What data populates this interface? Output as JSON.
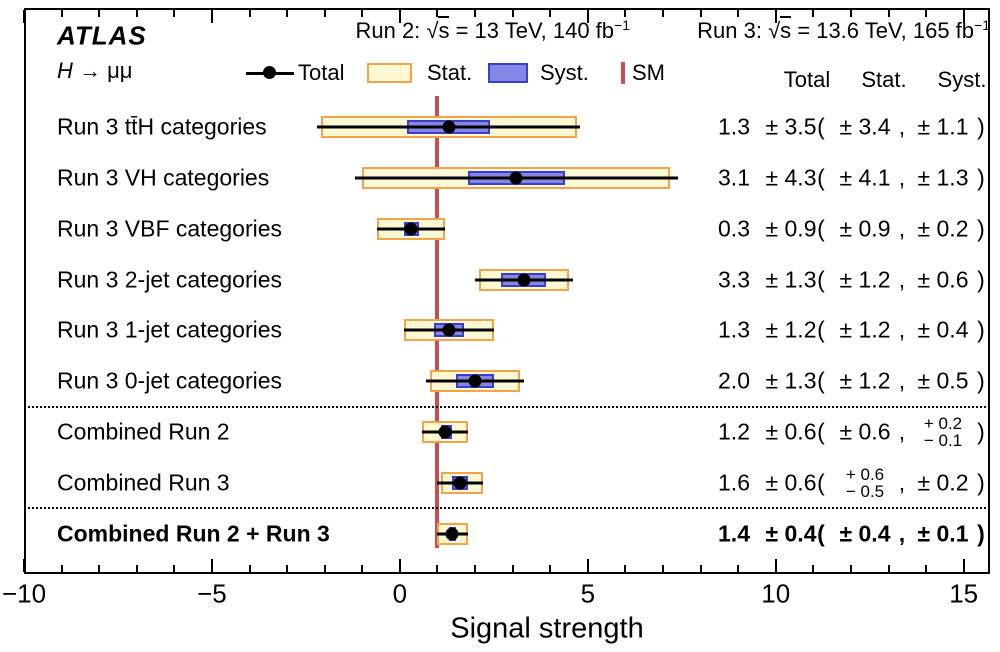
{
  "chart_data": {
    "type": "scatter",
    "variant": "horizontal-errorbar-summary",
    "title": "ATLAS",
    "subtitle_h": "H",
    "subtitle_rest": " → μμ",
    "conditions": {
      "run2": {
        "pre": "Run 2: ",
        "sqrt": "√",
        "arg": "s",
        "post": " = 13 TeV, 140 fb",
        "sup": "−1"
      },
      "run3": {
        "pre": "Run 3: ",
        "sqrt": "√",
        "arg": "s",
        "post": " = 13.6 TeV, 165 fb",
        "sup": "−1"
      }
    },
    "legend": {
      "total": "Total",
      "stat": "Stat.",
      "syst": "Syst.",
      "sm": "SM"
    },
    "columns": {
      "total": "Total",
      "stat": "Stat.",
      "syst": "Syst."
    },
    "xlabel": "Signal strength",
    "xlim": [
      -10,
      15.7
    ],
    "x_major_ticks": [
      -10,
      -5,
      0,
      5,
      10,
      15
    ],
    "x_tick_labels": [
      "−10",
      "−5",
      "0",
      "5",
      "10",
      "15"
    ],
    "x_minor_step": 1,
    "sm_value": 1,
    "punct": {
      "open": "(",
      "comma": ",",
      "close": ")"
    },
    "colors": {
      "stat_fill": "#fcf8d3",
      "stat_border": "#f2a44a",
      "syst_fill": "#8487e6",
      "syst_border": "#3a3ec8",
      "sm": "#c74e52",
      "total": "#000000"
    },
    "separators_after": [
      5,
      7
    ],
    "rows": [
      {
        "label": "Run 3 tt̄H categories",
        "bold": false,
        "value": 1.3,
        "total": {
          "up": 3.5,
          "down": 3.5
        },
        "stat": {
          "up": 3.4,
          "down": 3.4
        },
        "syst": {
          "up": 1.1,
          "down": 1.1
        },
        "display": {
          "value": "1.3",
          "total": {
            "pm": "± 3.5"
          },
          "stat": {
            "pm": "± 3.4"
          },
          "syst": {
            "pm": "± 1.1"
          }
        }
      },
      {
        "label": "Run 3 VH categories",
        "bold": false,
        "value": 3.1,
        "total": {
          "up": 4.3,
          "down": 4.3
        },
        "stat": {
          "up": 4.1,
          "down": 4.1
        },
        "syst": {
          "up": 1.3,
          "down": 1.3
        },
        "display": {
          "value": "3.1",
          "total": {
            "pm": "± 4.3"
          },
          "stat": {
            "pm": "± 4.1"
          },
          "syst": {
            "pm": "± 1.3"
          }
        }
      },
      {
        "label": "Run 3 VBF categories",
        "bold": false,
        "value": 0.3,
        "total": {
          "up": 0.9,
          "down": 0.9
        },
        "stat": {
          "up": 0.9,
          "down": 0.9
        },
        "syst": {
          "up": 0.2,
          "down": 0.2
        },
        "display": {
          "value": "0.3",
          "total": {
            "pm": "± 0.9"
          },
          "stat": {
            "pm": "± 0.9"
          },
          "syst": {
            "pm": "± 0.2"
          }
        }
      },
      {
        "label": "Run 3 2-jet categories",
        "bold": false,
        "value": 3.3,
        "total": {
          "up": 1.3,
          "down": 1.3
        },
        "stat": {
          "up": 1.2,
          "down": 1.2
        },
        "syst": {
          "up": 0.6,
          "down": 0.6
        },
        "display": {
          "value": "3.3",
          "total": {
            "pm": "± 1.3"
          },
          "stat": {
            "pm": "± 1.2"
          },
          "syst": {
            "pm": "± 0.6"
          }
        }
      },
      {
        "label": "Run 3 1-jet categories",
        "bold": false,
        "value": 1.3,
        "total": {
          "up": 1.2,
          "down": 1.2
        },
        "stat": {
          "up": 1.2,
          "down": 1.2
        },
        "syst": {
          "up": 0.4,
          "down": 0.4
        },
        "display": {
          "value": "1.3",
          "total": {
            "pm": "± 1.2"
          },
          "stat": {
            "pm": "± 1.2"
          },
          "syst": {
            "pm": "± 0.4"
          }
        }
      },
      {
        "label": "Run 3 0-jet categories",
        "bold": false,
        "value": 2.0,
        "total": {
          "up": 1.3,
          "down": 1.3
        },
        "stat": {
          "up": 1.2,
          "down": 1.2
        },
        "syst": {
          "up": 0.5,
          "down": 0.5
        },
        "display": {
          "value": "2.0",
          "total": {
            "pm": "± 1.3"
          },
          "stat": {
            "pm": "± 1.2"
          },
          "syst": {
            "pm": "± 0.5"
          }
        }
      },
      {
        "label": "Combined Run 2",
        "bold": false,
        "value": 1.2,
        "total": {
          "up": 0.6,
          "down": 0.6
        },
        "stat": {
          "up": 0.6,
          "down": 0.6
        },
        "syst": {
          "up": 0.2,
          "down": 0.1
        },
        "display": {
          "value": "1.2",
          "total": {
            "pm": "± 0.6"
          },
          "stat": {
            "pm": "± 0.6"
          },
          "syst": {
            "stack": true,
            "plus": "+ 0.2",
            "minus": "− 0.1"
          }
        }
      },
      {
        "label": "Combined Run 3",
        "bold": false,
        "value": 1.6,
        "total": {
          "up": 0.6,
          "down": 0.6
        },
        "stat": {
          "up": 0.6,
          "down": 0.5
        },
        "syst": {
          "up": 0.2,
          "down": 0.2
        },
        "display": {
          "value": "1.6",
          "total": {
            "pm": "± 0.6"
          },
          "stat": {
            "stack": true,
            "plus": "+ 0.6",
            "minus": "− 0.5"
          },
          "syst": {
            "pm": "± 0.2"
          }
        }
      },
      {
        "label": "Combined Run 2 + Run 3",
        "bold": true,
        "value": 1.4,
        "total": {
          "up": 0.4,
          "down": 0.4
        },
        "stat": {
          "up": 0.4,
          "down": 0.4
        },
        "syst": {
          "up": 0.1,
          "down": 0.1
        },
        "display": {
          "value": "1.4",
          "total": {
            "pm": "± 0.4"
          },
          "stat": {
            "pm": "± 0.4"
          },
          "syst": {
            "pm": "± 0.1"
          }
        }
      }
    ]
  }
}
